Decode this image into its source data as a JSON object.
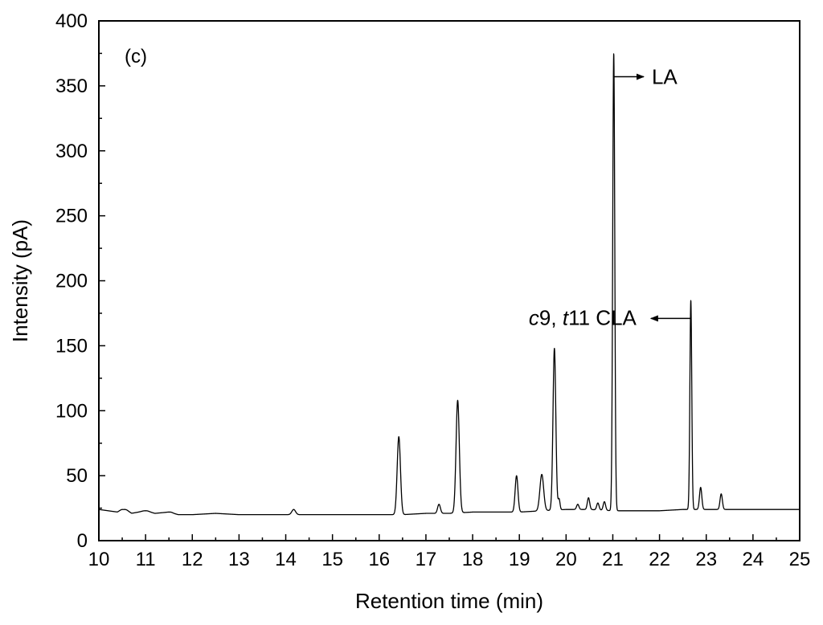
{
  "chart_data": {
    "type": "line",
    "panel_label": "(c)",
    "xlabel": "Retention time (min)",
    "ylabel": "Intensity (pA)",
    "xlim": [
      10,
      25
    ],
    "ylim": [
      0,
      400
    ],
    "x_ticks": [
      10,
      11,
      12,
      13,
      14,
      15,
      16,
      17,
      18,
      19,
      20,
      21,
      22,
      23,
      24,
      25
    ],
    "y_ticks": [
      0,
      50,
      100,
      150,
      200,
      250,
      300,
      350,
      400
    ],
    "grid": false,
    "legend": "none",
    "baseline": [
      [
        10.0,
        24
      ],
      [
        10.4,
        22
      ],
      [
        10.5,
        24
      ],
      [
        10.7,
        21
      ],
      [
        11.0,
        23
      ],
      [
        11.2,
        21
      ],
      [
        11.5,
        22
      ],
      [
        11.7,
        20
      ],
      [
        12.0,
        20
      ],
      [
        12.5,
        21
      ],
      [
        13.0,
        20
      ],
      [
        13.5,
        20
      ],
      [
        14.0,
        20
      ],
      [
        14.5,
        20
      ],
      [
        15.0,
        20
      ],
      [
        15.5,
        20
      ],
      [
        16.0,
        20
      ],
      [
        16.5,
        20
      ],
      [
        17.0,
        21
      ],
      [
        17.5,
        21
      ],
      [
        18.0,
        22
      ],
      [
        18.5,
        22
      ],
      [
        19.0,
        22
      ],
      [
        19.5,
        23
      ],
      [
        20.0,
        24
      ],
      [
        20.5,
        24
      ],
      [
        21.0,
        23
      ],
      [
        21.5,
        23
      ],
      [
        22.0,
        23
      ],
      [
        22.5,
        24
      ],
      [
        23.0,
        24
      ],
      [
        23.5,
        24
      ],
      [
        24.0,
        24
      ],
      [
        24.5,
        24
      ],
      [
        25.0,
        24
      ]
    ],
    "peaks": [
      {
        "rt": 10.55,
        "height": 24,
        "width": 0.06
      },
      {
        "rt": 11.0,
        "height": 23,
        "width": 0.05
      },
      {
        "rt": 11.52,
        "height": 22,
        "width": 0.04
      },
      {
        "rt": 14.17,
        "height": 24,
        "width": 0.04
      },
      {
        "rt": 16.42,
        "height": 80,
        "width": 0.035
      },
      {
        "rt": 17.28,
        "height": 28,
        "width": 0.03
      },
      {
        "rt": 17.68,
        "height": 108,
        "width": 0.035
      },
      {
        "rt": 18.94,
        "height": 50,
        "width": 0.03
      },
      {
        "rt": 19.48,
        "height": 51,
        "width": 0.04
      },
      {
        "rt": 19.75,
        "height": 148,
        "width": 0.03
      },
      {
        "rt": 19.85,
        "height": 32,
        "width": 0.02
      },
      {
        "rt": 20.25,
        "height": 28,
        "width": 0.025
      },
      {
        "rt": 20.48,
        "height": 33,
        "width": 0.025
      },
      {
        "rt": 20.68,
        "height": 29,
        "width": 0.025
      },
      {
        "rt": 20.82,
        "height": 30,
        "width": 0.025
      },
      {
        "rt": 21.02,
        "height": 375,
        "width": 0.022
      },
      {
        "rt": 22.67,
        "height": 185,
        "width": 0.02
      },
      {
        "rt": 22.88,
        "height": 41,
        "width": 0.025
      },
      {
        "rt": 23.32,
        "height": 36,
        "width": 0.025
      }
    ],
    "annotations": [
      {
        "name": "la",
        "text": "LA",
        "peak_rt": 21.02,
        "at_y": 357,
        "arrow_to_x": 21.8,
        "direction": "right"
      },
      {
        "name": "c9-t11-cla",
        "text_italic_1": "c",
        "text_1": "9, ",
        "text_italic_2": "t",
        "text_2": "11 CLA",
        "peak_rt": 22.67,
        "at_y": 171,
        "arrow_to_x": 21.85,
        "direction": "left"
      }
    ]
  }
}
